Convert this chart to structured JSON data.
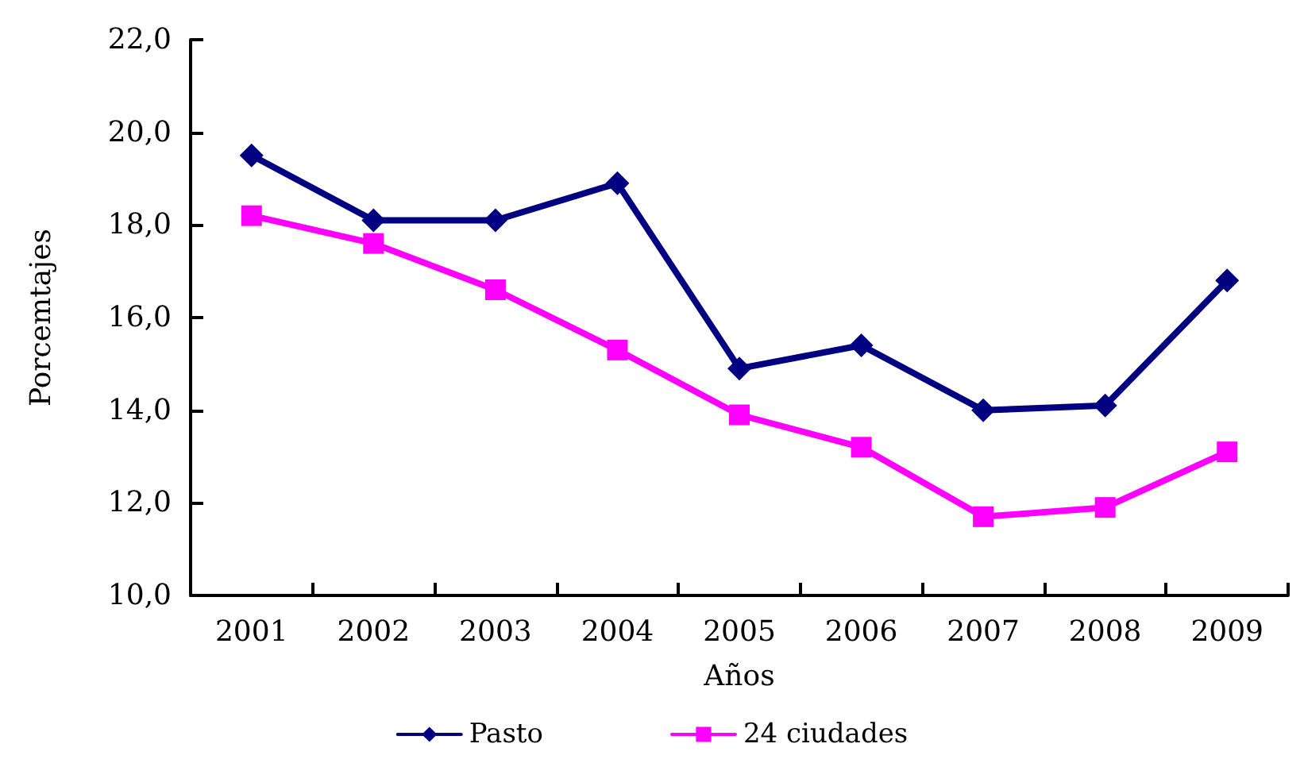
{
  "chart_data": {
    "type": "line",
    "xlabel": "Años",
    "ylabel": "Porcemtajes",
    "categories": [
      "2001",
      "2002",
      "2003",
      "2004",
      "2005",
      "2006",
      "2007",
      "2008",
      "2009"
    ],
    "series": [
      {
        "name": "Pasto",
        "color": "#000080",
        "marker": "diamond",
        "values": [
          19.5,
          18.1,
          18.1,
          18.9,
          14.9,
          15.4,
          14.0,
          14.1,
          16.8
        ]
      },
      {
        "name": "24 ciudades",
        "color": "#ff00ff",
        "marker": "square",
        "values": [
          18.2,
          17.6,
          16.6,
          15.3,
          13.9,
          13.2,
          11.7,
          11.9,
          13.1
        ]
      }
    ],
    "ylim": [
      10,
      22
    ],
    "yticks": [
      {
        "value": 10,
        "label": "10,0"
      },
      {
        "value": 12,
        "label": "12,0"
      },
      {
        "value": 14,
        "label": "14,0"
      },
      {
        "value": 16,
        "label": "16,0"
      },
      {
        "value": 18,
        "label": "18,0"
      },
      {
        "value": 20,
        "label": "20,0"
      },
      {
        "value": 22,
        "label": "22,0"
      }
    ],
    "grid": false,
    "legend": "bottom",
    "line_style": "solid"
  }
}
